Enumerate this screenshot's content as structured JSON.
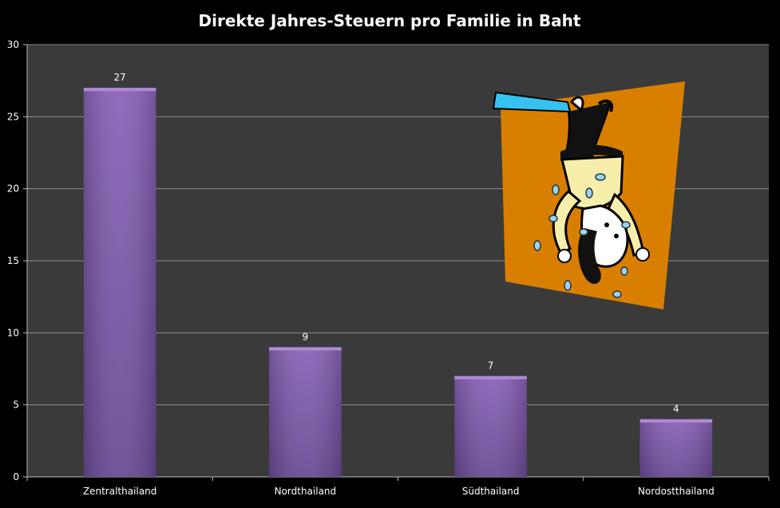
{
  "chart_data": {
    "type": "bar",
    "title": "Direkte Jahres-Steuern pro Familie in Baht",
    "xlabel": "",
    "ylabel": "",
    "categories": [
      "Zentralthailand",
      "Nordthailand",
      "Südthailand",
      "Nordostthailand"
    ],
    "values": [
      27,
      9,
      7,
      4
    ],
    "data_labels": [
      "27",
      "9",
      "7",
      "4"
    ],
    "ylim": [
      0,
      30
    ],
    "yticks": [
      0,
      5,
      10,
      15,
      20,
      25,
      30
    ],
    "grid": true,
    "legend": "none"
  },
  "colors": {
    "page_background": "#000000",
    "plot_background": "#3a3a3a",
    "gridline": "#8c8c8c",
    "bar_fill_top": "#8a63b8",
    "bar_fill_bottom": "#6a4a95",
    "bar_cap": "#b08ad8",
    "text": "#ffffff",
    "illustration_background": "#d97f00"
  },
  "illustration": {
    "icon": "upside-down-person-losing-coins-icon"
  }
}
